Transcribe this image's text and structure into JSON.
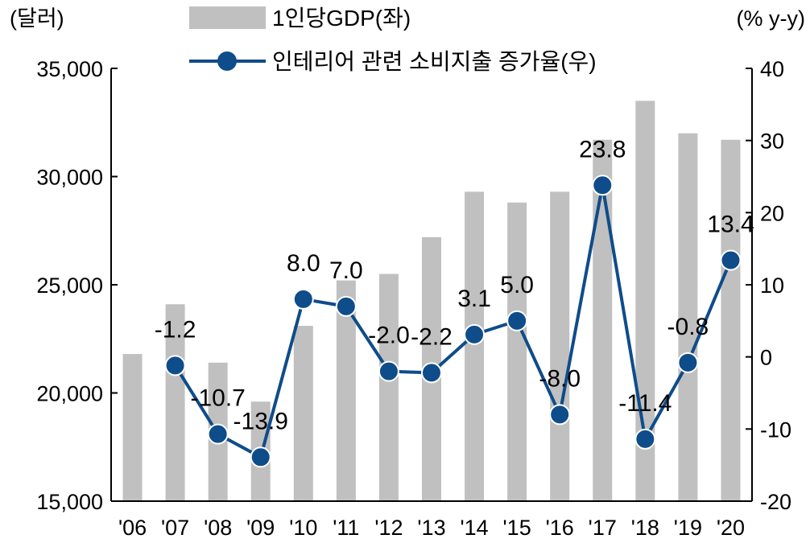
{
  "chart_data": {
    "type": "bar+line",
    "categories": [
      "'06",
      "'07",
      "'08",
      "'09",
      "'10",
      "'11",
      "'12",
      "'13",
      "'14",
      "'15",
      "'16",
      "'17",
      "'18",
      "'19",
      "'20"
    ],
    "series": [
      {
        "name": "1인당GDP(좌)",
        "type": "bar",
        "axis": "left",
        "color": "#c0c0c0",
        "values": [
          21800,
          24100,
          21400,
          19600,
          23100,
          25200,
          25500,
          27200,
          29300,
          28800,
          29300,
          31700,
          33500,
          32000,
          31700
        ]
      },
      {
        "name": "인테리어 관련 소비지출 증가율(우)",
        "type": "line",
        "axis": "right",
        "color": "#0f4c8a",
        "values": [
          null,
          -1.2,
          -10.7,
          -13.9,
          8.0,
          7.0,
          -2.0,
          -2.2,
          3.1,
          5.0,
          -8.0,
          23.8,
          -11.4,
          -0.8,
          13.4
        ],
        "labels": [
          null,
          "-1.2",
          "-10.7",
          "-13.9",
          "8.0",
          "7.0",
          "-2.0",
          "-2.2",
          "3.1",
          "5.0",
          "-8.0",
          "23.8",
          "-11.4",
          "-0.8",
          "13.4"
        ]
      }
    ],
    "left_axis": {
      "unit": "(달러)",
      "range": [
        15000,
        35000
      ],
      "ticks": [
        15000,
        20000,
        25000,
        30000,
        35000
      ],
      "tick_labels": [
        "15,000",
        "20,000",
        "25,000",
        "30,000",
        "35,000"
      ]
    },
    "right_axis": {
      "unit": "(% y-y)",
      "range": [
        -20,
        40
      ],
      "ticks": [
        -20,
        -10,
        0,
        10,
        20,
        30,
        40
      ],
      "tick_labels": [
        "-20",
        "-10",
        "0",
        "10",
        "20",
        "30",
        "40"
      ]
    },
    "grid": false,
    "legend_position": "top-center"
  }
}
